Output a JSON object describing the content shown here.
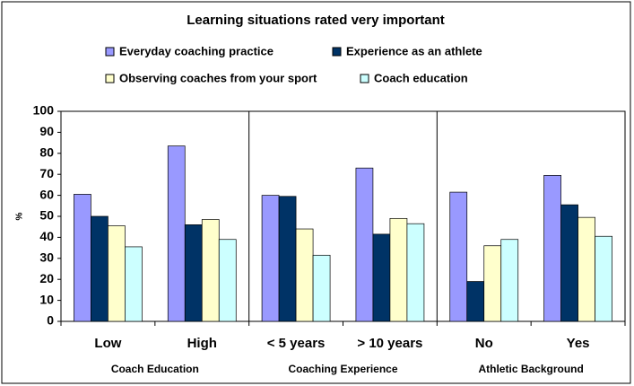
{
  "chart_data": {
    "type": "bar",
    "title": "Learning situations rated very important",
    "y_label": "%",
    "categories": [
      "Low",
      "High",
      "< 5 years",
      "> 10 years",
      "No",
      "Yes"
    ],
    "groups": [
      "Coach Education",
      "Coaching Experience",
      "Athletic Background"
    ],
    "series": [
      {
        "name": "Everyday coaching practice",
        "color": "#9999ff",
        "values": [
          60.5,
          83.5,
          60,
          73,
          61.5,
          69.5
        ]
      },
      {
        "name": "Experience as an athlete",
        "color": "#003366",
        "values": [
          50,
          46,
          59.5,
          41.5,
          19,
          55.5
        ]
      },
      {
        "name": "Observing coaches from your sport",
        "color": "#ffffcc",
        "values": [
          45.5,
          48.5,
          44,
          49,
          36,
          49.5
        ]
      },
      {
        "name": "Coach education",
        "color": "#ccffff",
        "values": [
          35.5,
          39,
          31.5,
          46.5,
          39,
          40.5
        ]
      }
    ],
    "ylim": [
      0,
      100
    ],
    "yticks": [
      0,
      10,
      20,
      30,
      40,
      50,
      60,
      70,
      80,
      90,
      100
    ],
    "grid": false
  }
}
